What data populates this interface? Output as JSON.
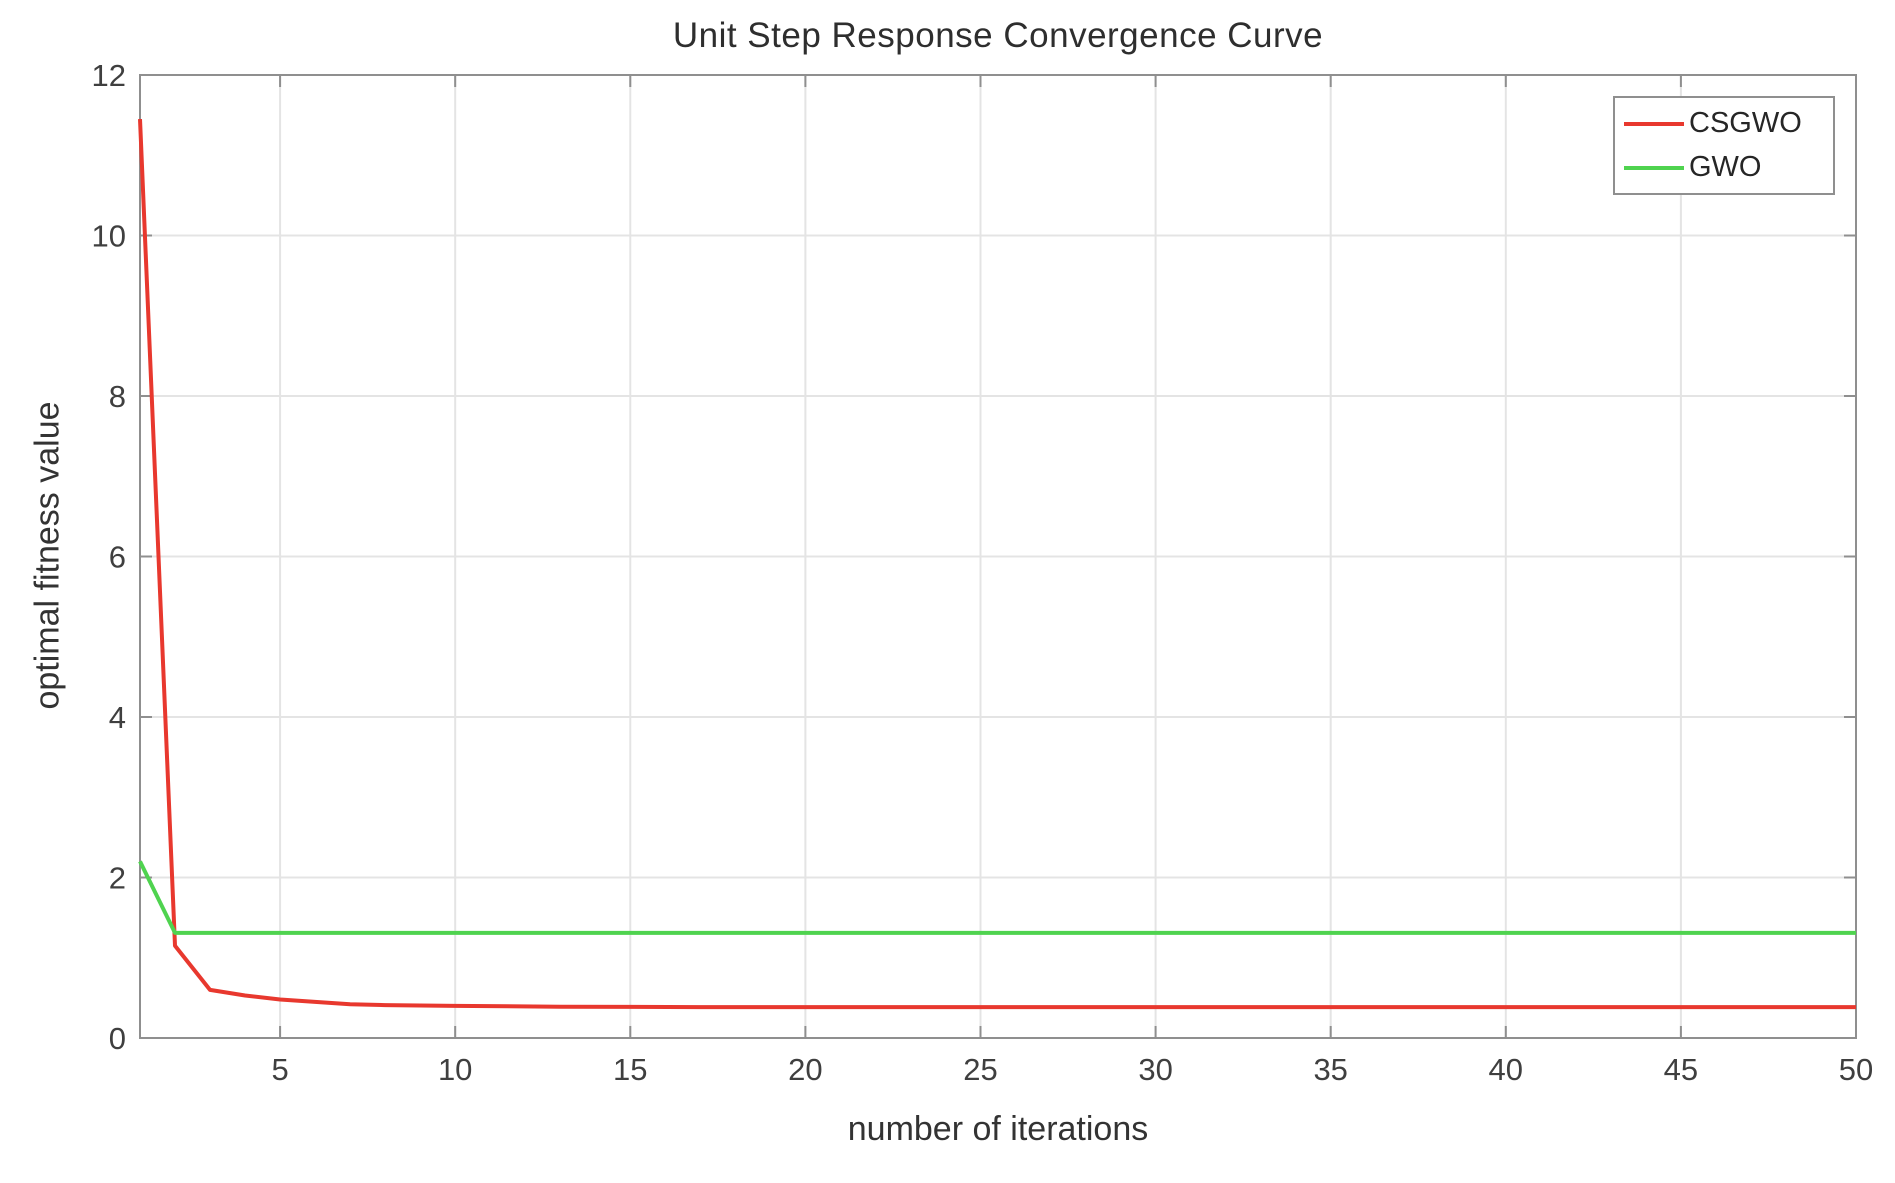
{
  "chart_data": {
    "type": "line",
    "title": "Unit Step Response Convergence Curve",
    "xlabel": "number of iterations",
    "ylabel": "optimal fitness value",
    "xlim": [
      1,
      50
    ],
    "ylim": [
      0,
      12
    ],
    "xticks": [
      5,
      10,
      15,
      20,
      25,
      30,
      35,
      40,
      45,
      50
    ],
    "yticks": [
      0,
      2,
      4,
      6,
      8,
      10,
      12
    ],
    "grid": true,
    "legend_position": "top-right",
    "series": [
      {
        "name": "CSGWO",
        "color": "#e8382e",
        "points": [
          [
            1,
            11.45
          ],
          [
            2,
            1.15
          ],
          [
            3,
            0.6
          ],
          [
            4,
            0.53
          ],
          [
            5,
            0.48
          ],
          [
            6,
            0.45
          ],
          [
            7,
            0.42
          ],
          [
            8,
            0.41
          ],
          [
            10,
            0.4
          ],
          [
            13,
            0.39
          ],
          [
            17,
            0.385
          ],
          [
            25,
            0.385
          ],
          [
            35,
            0.385
          ],
          [
            50,
            0.385
          ]
        ]
      },
      {
        "name": "GWO",
        "color": "#4fd34f",
        "points": [
          [
            1,
            2.2
          ],
          [
            2,
            1.31
          ],
          [
            10,
            1.31
          ],
          [
            25,
            1.31
          ],
          [
            50,
            1.31
          ]
        ]
      }
    ],
    "style": {
      "grid_color": "#e4e4e4",
      "axis_box_color": "#8f8f8f",
      "tick_label_color": "#3f3f3f",
      "line_width": 4
    }
  }
}
